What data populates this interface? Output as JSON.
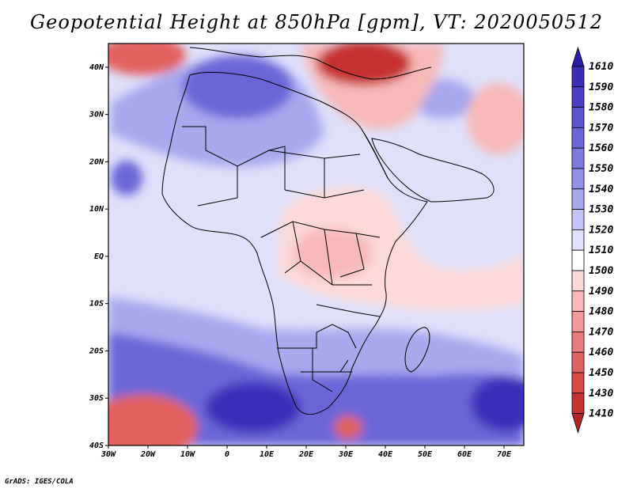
{
  "title": "Geopotential Height at 850hPa [gpm], VT: 2020050512",
  "credit": "GrADS: IGES/COLA",
  "map": {
    "lon_range": [
      -30,
      75
    ],
    "lat_range": [
      -40,
      45
    ],
    "lat_ticks": [
      "40N",
      "30N",
      "20N",
      "10N",
      "EQ",
      "10S",
      "20S",
      "30S",
      "40S"
    ],
    "lat_values": [
      40,
      30,
      20,
      10,
      0,
      -10,
      -20,
      -30,
      -40
    ],
    "lon_ticks": [
      "30W",
      "20W",
      "10W",
      "0",
      "10E",
      "20E",
      "30E",
      "40E",
      "50E",
      "60E",
      "70E"
    ],
    "lon_values": [
      -30,
      -20,
      -10,
      0,
      10,
      20,
      30,
      40,
      50,
      60,
      70
    ]
  },
  "colorbar": {
    "top_label": "1610",
    "levels": [
      {
        "label": "1590",
        "color": "#3a2db8"
      },
      {
        "label": "1580",
        "color": "#4a3fc4"
      },
      {
        "label": "1570",
        "color": "#5b52cf"
      },
      {
        "label": "1560",
        "color": "#6b66d8"
      },
      {
        "label": "1550",
        "color": "#7d7ae0"
      },
      {
        "label": "1540",
        "color": "#9190e6"
      },
      {
        "label": "1530",
        "color": "#a8a8ee"
      },
      {
        "label": "1520",
        "color": "#c2c4f5"
      },
      {
        "label": "1510",
        "color": "#dfe0fa"
      },
      {
        "label": "1500",
        "color": "#ffffff"
      },
      {
        "label": "1490",
        "color": "#fcd9d8"
      },
      {
        "label": "1480",
        "color": "#f7b9b8"
      },
      {
        "label": "1470",
        "color": "#f19a99"
      },
      {
        "label": "1460",
        "color": "#ea7d7c"
      },
      {
        "label": "1450",
        "color": "#e26261"
      },
      {
        "label": "1430",
        "color": "#d84848"
      },
      {
        "label": "1410",
        "color": "#c63333"
      }
    ],
    "top_cap_color": "#2a1ea8",
    "bottom_cap_color": "#b42424"
  },
  "field_colors": {
    "background": "#dfe0fa",
    "deep_blue": "#3a2db8",
    "mid_blue": "#6b66d8",
    "light_blue": "#a8a8ee",
    "pale_blue": "#c2c4f5",
    "white": "#ffffff",
    "pale_red": "#fcd9d8",
    "light_red": "#f7b9b8",
    "mid_red": "#e26261",
    "deep_red": "#c63333"
  }
}
